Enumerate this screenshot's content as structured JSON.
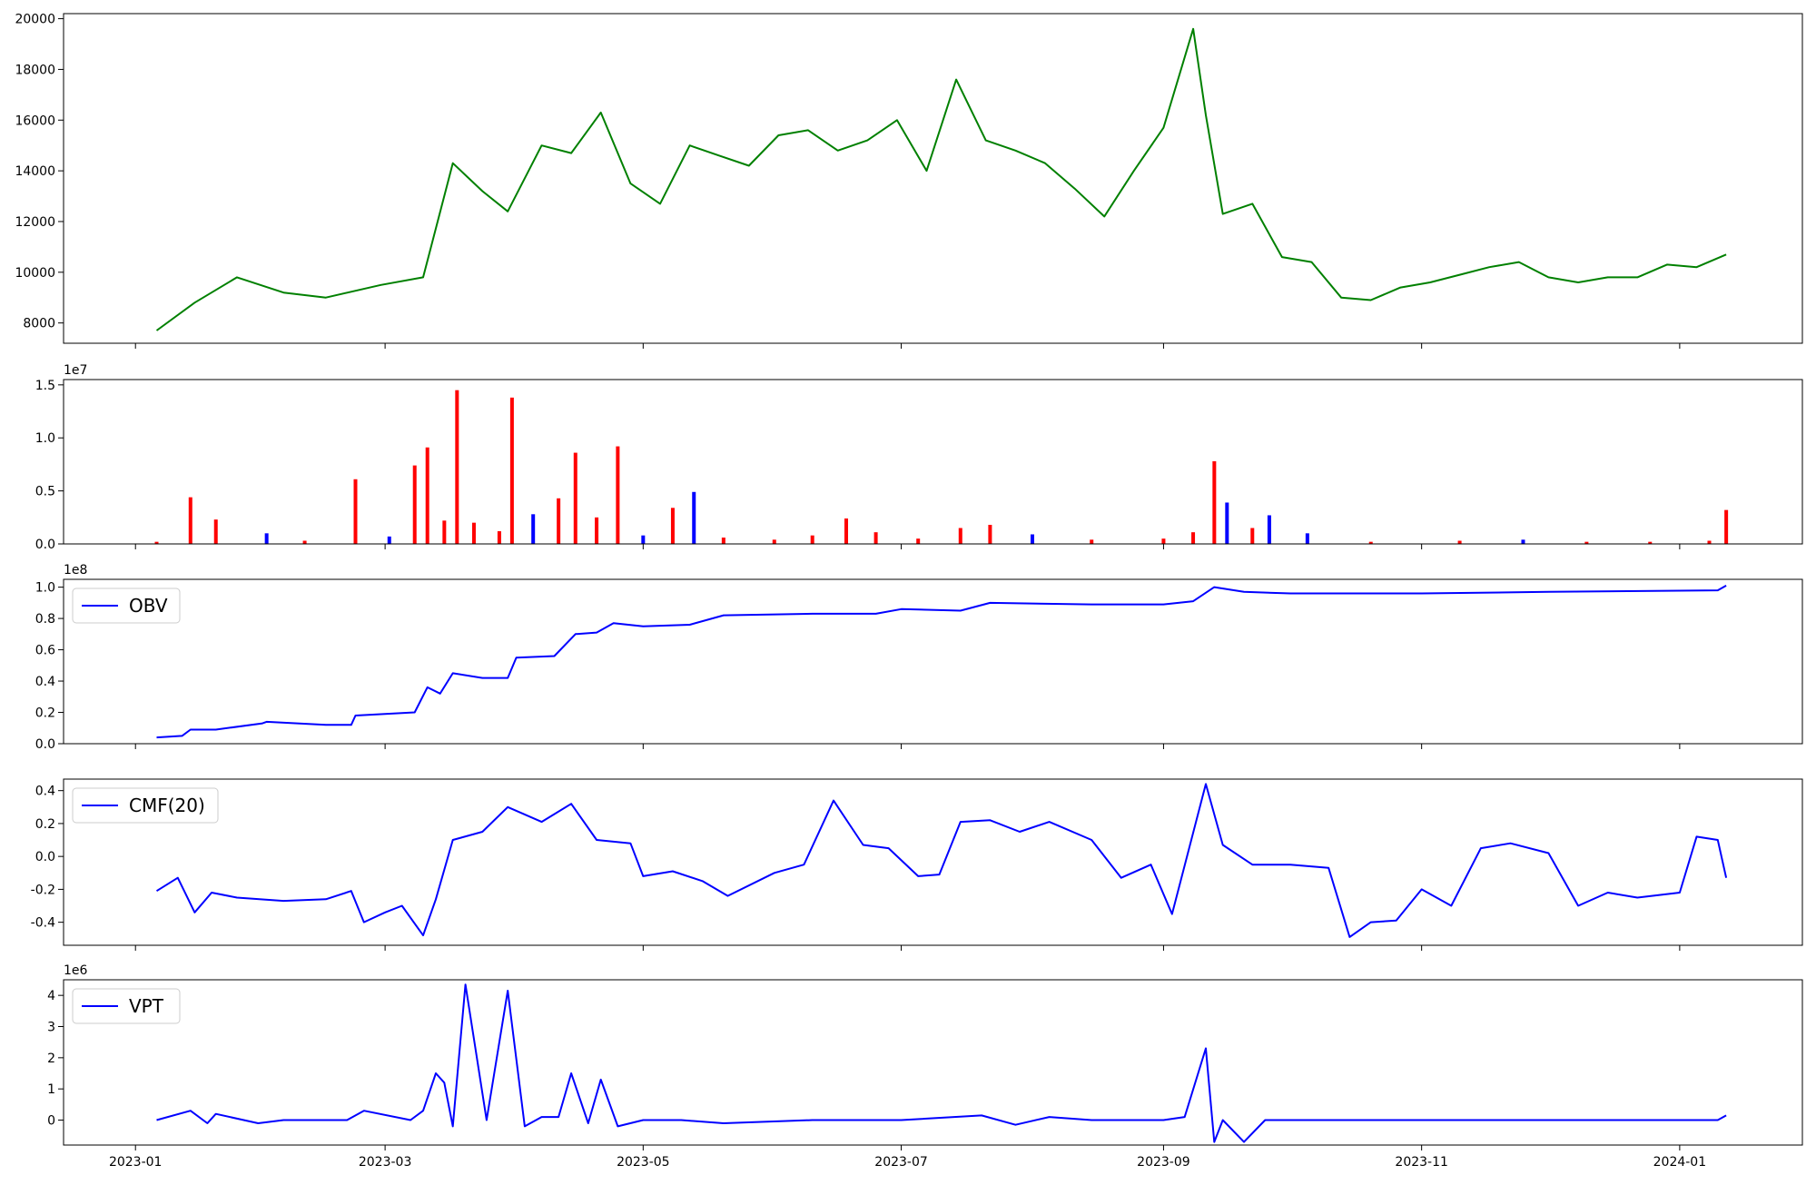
{
  "colors": {
    "price_line": "#008000",
    "volume_up": "#ff0000",
    "volume_down": "#0000ff",
    "indicator_line": "#0000ff"
  },
  "chart_data": [
    {
      "type": "line",
      "name": "price",
      "ylim": [
        7200,
        20200
      ],
      "yticks": [
        8000,
        10000,
        12000,
        14000,
        16000,
        18000,
        20000
      ],
      "ytick_labels": [
        "8000",
        "10000",
        "12000",
        "14000",
        "16000",
        "18000",
        "20000"
      ],
      "x": [
        "2023-01-06",
        "2023-01-15",
        "2023-01-25",
        "2023-02-05",
        "2023-02-15",
        "2023-02-28",
        "2023-03-10",
        "2023-03-17",
        "2023-03-24",
        "2023-03-30",
        "2023-04-07",
        "2023-04-14",
        "2023-04-21",
        "2023-04-28",
        "2023-05-05",
        "2023-05-12",
        "2023-05-19",
        "2023-05-26",
        "2023-06-02",
        "2023-06-09",
        "2023-06-16",
        "2023-06-23",
        "2023-06-30",
        "2023-07-07",
        "2023-07-14",
        "2023-07-21",
        "2023-07-28",
        "2023-08-04",
        "2023-08-11",
        "2023-08-18",
        "2023-08-25",
        "2023-09-01",
        "2023-09-08",
        "2023-09-11",
        "2023-09-15",
        "2023-09-22",
        "2023-09-29",
        "2023-10-06",
        "2023-10-13",
        "2023-10-20",
        "2023-10-27",
        "2023-11-03",
        "2023-11-10",
        "2023-11-17",
        "2023-11-24",
        "2023-12-01",
        "2023-12-08",
        "2023-12-15",
        "2023-12-22",
        "2023-12-29",
        "2024-01-05",
        "2024-01-12"
      ],
      "values": [
        7700,
        8800,
        9800,
        9200,
        9000,
        9500,
        9800,
        14300,
        13200,
        12400,
        15000,
        14700,
        16300,
        13500,
        12700,
        15000,
        14600,
        14200,
        15400,
        15600,
        14800,
        15200,
        16000,
        14000,
        17600,
        15200,
        14800,
        14300,
        13300,
        12200,
        14000,
        15700,
        19600,
        16200,
        12300,
        12700,
        10600,
        10400,
        9000,
        8900,
        9400,
        9600,
        9900,
        10200,
        10400,
        9800,
        9600,
        9800,
        9800,
        10300,
        10200,
        10700
      ]
    },
    {
      "type": "bar",
      "name": "volume",
      "offset_label": "1e7",
      "ylim": [
        0,
        15500000
      ],
      "yticks": [
        0,
        5000000,
        10000000,
        15000000
      ],
      "ytick_labels": [
        "0.0",
        "0.5",
        "1.0",
        "1.5"
      ],
      "x": [
        "2023-01-06",
        "2023-01-14",
        "2023-01-20",
        "2023-02-01",
        "2023-02-10",
        "2023-02-22",
        "2023-03-02",
        "2023-03-08",
        "2023-03-11",
        "2023-03-15",
        "2023-03-18",
        "2023-03-22",
        "2023-03-28",
        "2023-03-31",
        "2023-04-05",
        "2023-04-11",
        "2023-04-15",
        "2023-04-20",
        "2023-04-25",
        "2023-05-01",
        "2023-05-08",
        "2023-05-13",
        "2023-05-20",
        "2023-06-01",
        "2023-06-10",
        "2023-06-18",
        "2023-06-25",
        "2023-07-05",
        "2023-07-15",
        "2023-07-22",
        "2023-08-01",
        "2023-08-15",
        "2023-09-01",
        "2023-09-08",
        "2023-09-13",
        "2023-09-16",
        "2023-09-22",
        "2023-09-26",
        "2023-10-05",
        "2023-10-20",
        "2023-11-10",
        "2023-11-25",
        "2023-12-10",
        "2023-12-25",
        "2024-01-08",
        "2024-01-12"
      ],
      "values": [
        200000,
        4400000,
        2300000,
        1000000,
        300000,
        6100000,
        700000,
        7400000,
        9100000,
        2200000,
        14500000,
        2000000,
        1200000,
        13800000,
        2800000,
        4300000,
        8600000,
        2500000,
        9200000,
        800000,
        3400000,
        4900000,
        600000,
        400000,
        800000,
        2400000,
        1100000,
        500000,
        1500000,
        1800000,
        900000,
        400000,
        500000,
        1100000,
        7800000,
        3900000,
        1500000,
        2700000,
        1000000,
        200000,
        300000,
        400000,
        200000,
        200000,
        300000,
        3200000
      ],
      "direction": [
        "up",
        "up",
        "up",
        "down",
        "up",
        "up",
        "down",
        "up",
        "up",
        "up",
        "up",
        "up",
        "up",
        "up",
        "down",
        "up",
        "up",
        "up",
        "up",
        "down",
        "up",
        "down",
        "up",
        "up",
        "up",
        "up",
        "up",
        "up",
        "up",
        "up",
        "down",
        "up",
        "up",
        "up",
        "up",
        "down",
        "up",
        "down",
        "down",
        "up",
        "up",
        "down",
        "up",
        "up",
        "up",
        "up"
      ]
    },
    {
      "type": "line",
      "name": "OBV",
      "legend": "OBV",
      "offset_label": "1e8",
      "ylim": [
        0,
        105000000
      ],
      "yticks": [
        0,
        20000000,
        40000000,
        60000000,
        80000000,
        100000000
      ],
      "ytick_labels": [
        "0.0",
        "0.2",
        "0.4",
        "0.6",
        "0.8",
        "1.0"
      ],
      "x": [
        "2023-01-06",
        "2023-01-12",
        "2023-01-14",
        "2023-01-20",
        "2023-01-31",
        "2023-02-01",
        "2023-02-15",
        "2023-02-21",
        "2023-02-22",
        "2023-03-01",
        "2023-03-08",
        "2023-03-11",
        "2023-03-14",
        "2023-03-17",
        "2023-03-24",
        "2023-03-30",
        "2023-04-01",
        "2023-04-10",
        "2023-04-15",
        "2023-04-20",
        "2023-04-24",
        "2023-05-01",
        "2023-05-12",
        "2023-05-20",
        "2023-06-10",
        "2023-06-25",
        "2023-07-01",
        "2023-07-15",
        "2023-07-22",
        "2023-08-15",
        "2023-09-01",
        "2023-09-08",
        "2023-09-13",
        "2023-09-20",
        "2023-10-01",
        "2023-11-01",
        "2023-12-01",
        "2024-01-10",
        "2024-01-12"
      ],
      "values": [
        4000000,
        5000000,
        9000000,
        9000000,
        13000000,
        14000000,
        12000000,
        12000000,
        18000000,
        19000000,
        20000000,
        36000000,
        32000000,
        45000000,
        42000000,
        42000000,
        55000000,
        56000000,
        70000000,
        71000000,
        77000000,
        75000000,
        76000000,
        82000000,
        83000000,
        83000000,
        86000000,
        85000000,
        90000000,
        89000000,
        89000000,
        91000000,
        100000000,
        97000000,
        96000000,
        96000000,
        97000000,
        98000000,
        101000000
      ]
    },
    {
      "type": "line",
      "name": "CMF(20)",
      "legend": "CMF(20)",
      "ylim": [
        -0.54,
        0.47
      ],
      "yticks": [
        -0.4,
        -0.2,
        0.0,
        0.2,
        0.4
      ],
      "ytick_labels": [
        "-0.4",
        "-0.2",
        "0.0",
        "0.2",
        "0.4"
      ],
      "x": [
        "2023-01-06",
        "2023-01-11",
        "2023-01-15",
        "2023-01-19",
        "2023-01-25",
        "2023-02-05",
        "2023-02-15",
        "2023-02-21",
        "2023-02-24",
        "2023-03-01",
        "2023-03-05",
        "2023-03-10",
        "2023-03-13",
        "2023-03-17",
        "2023-03-24",
        "2023-03-30",
        "2023-04-07",
        "2023-04-14",
        "2023-04-20",
        "2023-04-28",
        "2023-05-01",
        "2023-05-08",
        "2023-05-15",
        "2023-05-21",
        "2023-06-01",
        "2023-06-08",
        "2023-06-15",
        "2023-06-22",
        "2023-06-28",
        "2023-07-05",
        "2023-07-10",
        "2023-07-15",
        "2023-07-22",
        "2023-07-29",
        "2023-08-05",
        "2023-08-15",
        "2023-08-22",
        "2023-08-29",
        "2023-09-03",
        "2023-09-11",
        "2023-09-15",
        "2023-09-22",
        "2023-10-01",
        "2023-10-10",
        "2023-10-15",
        "2023-10-20",
        "2023-10-26",
        "2023-11-01",
        "2023-11-08",
        "2023-11-15",
        "2023-11-22",
        "2023-12-01",
        "2023-12-08",
        "2023-12-15",
        "2023-12-22",
        "2024-01-01",
        "2024-01-05",
        "2024-01-10",
        "2024-01-12"
      ],
      "values": [
        -0.21,
        -0.13,
        -0.34,
        -0.22,
        -0.25,
        -0.27,
        -0.26,
        -0.21,
        -0.4,
        -0.34,
        -0.3,
        -0.48,
        -0.26,
        0.1,
        0.15,
        0.3,
        0.21,
        0.32,
        0.1,
        0.08,
        -0.12,
        -0.09,
        -0.15,
        -0.24,
        -0.1,
        -0.05,
        0.34,
        0.07,
        0.05,
        -0.12,
        -0.11,
        0.21,
        0.22,
        0.15,
        0.21,
        0.1,
        -0.13,
        -0.05,
        -0.35,
        0.44,
        0.07,
        -0.05,
        -0.05,
        -0.07,
        -0.49,
        -0.4,
        -0.39,
        -0.2,
        -0.3,
        0.05,
        0.08,
        0.02,
        -0.3,
        -0.22,
        -0.25,
        -0.22,
        0.12,
        0.1,
        -0.13
      ]
    },
    {
      "type": "line",
      "name": "VPT",
      "legend": "VPT",
      "offset_label": "1e6",
      "ylim": [
        -800000,
        4500000
      ],
      "yticks": [
        0,
        1000000,
        2000000,
        3000000,
        4000000
      ],
      "ytick_labels": [
        "0",
        "1",
        "2",
        "3",
        "4"
      ],
      "x": [
        "2023-01-06",
        "2023-01-14",
        "2023-01-18",
        "2023-01-20",
        "2023-01-30",
        "2023-02-05",
        "2023-02-20",
        "2023-02-24",
        "2023-03-07",
        "2023-03-10",
        "2023-03-13",
        "2023-03-15",
        "2023-03-17",
        "2023-03-20",
        "2023-03-25",
        "2023-03-30",
        "2023-04-03",
        "2023-04-07",
        "2023-04-11",
        "2023-04-14",
        "2023-04-18",
        "2023-04-21",
        "2023-04-25",
        "2023-05-01",
        "2023-05-10",
        "2023-05-20",
        "2023-06-10",
        "2023-06-20",
        "2023-07-01",
        "2023-07-20",
        "2023-07-28",
        "2023-08-05",
        "2023-08-15",
        "2023-09-01",
        "2023-09-06",
        "2023-09-11",
        "2023-09-13",
        "2023-09-15",
        "2023-09-20",
        "2023-09-25",
        "2023-10-05",
        "2023-11-01",
        "2023-12-01",
        "2024-01-10",
        "2024-01-12"
      ],
      "values": [
        0,
        300000,
        -100000,
        200000,
        -100000,
        0,
        0,
        300000,
        0,
        300000,
        1500000,
        1200000,
        -200000,
        4350000,
        0,
        4150000,
        -200000,
        100000,
        100000,
        1500000,
        -100000,
        1300000,
        -200000,
        0,
        0,
        -100000,
        0,
        0,
        0,
        150000,
        -150000,
        100000,
        0,
        0,
        100000,
        2300000,
        -700000,
        0,
        -700000,
        0,
        0,
        0,
        0,
        0,
        150000
      ]
    }
  ],
  "x_axis": {
    "tick_dates": [
      "2023-01-01",
      "2023-03-01",
      "2023-05-01",
      "2023-07-01",
      "2023-09-01",
      "2023-11-01",
      "2024-01-01"
    ],
    "tick_labels": [
      "2023-01",
      "2023-03",
      "2023-05",
      "2023-07",
      "2023-09",
      "2023-11",
      "2024-01"
    ],
    "range": [
      "2022-12-15",
      "2024-01-30"
    ]
  }
}
